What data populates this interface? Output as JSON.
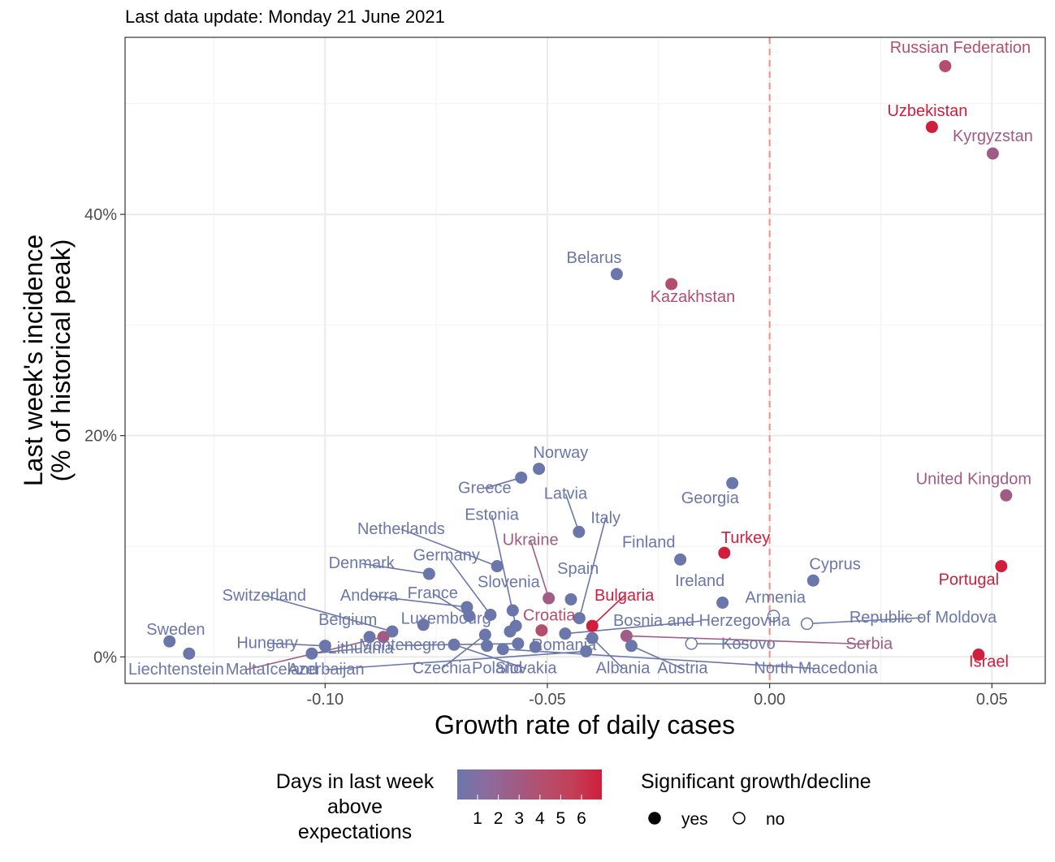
{
  "subtitle": "Last data update: Monday 21 June 2021",
  "chart_data": {
    "type": "scatter",
    "title": "",
    "subtitle": "Last data update: Monday 21 June 2021",
    "xlabel": "Growth rate of daily cases",
    "ylabel_lines": [
      "Last week's incidence",
      "(% of historical peak)"
    ],
    "xlim": [
      -0.145,
      0.062
    ],
    "ylim": [
      -0.024,
      0.56
    ],
    "x_ticks": [
      {
        "value": -0.1,
        "label": "-0.10"
      },
      {
        "value": -0.05,
        "label": "-0.05"
      },
      {
        "value": 0.0,
        "label": "0.00"
      },
      {
        "value": 0.05,
        "label": "0.05"
      }
    ],
    "y_ticks": [
      {
        "value": 0.0,
        "label": "0%"
      },
      {
        "value": 0.2,
        "label": "20%"
      },
      {
        "value": 0.4,
        "label": "40%"
      }
    ],
    "reference_line_x": 0.0,
    "reference_line_color": "#f0907e",
    "grid": true,
    "color_scale": [
      "#6b76aa",
      "#8b6c9f",
      "#a05c85",
      "#b54e6d",
      "#c23f57",
      "#d01e3d"
    ],
    "points": [
      {
        "name": "Russian Federation",
        "x": 0.0395,
        "y": 0.534,
        "days": 3,
        "sig": true
      },
      {
        "name": "Uzbekistan",
        "x": 0.0365,
        "y": 0.479,
        "days": 6,
        "sig": true
      },
      {
        "name": "Kyrgyzstan",
        "x": 0.0502,
        "y": 0.455,
        "days": 2,
        "sig": true
      },
      {
        "name": "Belarus",
        "x": -0.0344,
        "y": 0.346,
        "days": 0,
        "sig": true
      },
      {
        "name": "Kazakhstan",
        "x": -0.0221,
        "y": 0.337,
        "days": 3,
        "sig": true
      },
      {
        "name": "Norway",
        "x": -0.0519,
        "y": 0.17,
        "days": 0,
        "sig": true
      },
      {
        "name": "Greece",
        "x": -0.0559,
        "y": 0.162,
        "days": 0,
        "sig": true
      },
      {
        "name": "Georgia",
        "x": -0.0084,
        "y": 0.157,
        "days": 0,
        "sig": true
      },
      {
        "name": "United Kingdom",
        "x": 0.0532,
        "y": 0.146,
        "days": 2,
        "sig": true
      },
      {
        "name": "Latvia",
        "x": -0.0429,
        "y": 0.113,
        "days": 0,
        "sig": true
      },
      {
        "name": "Turkey",
        "x": -0.0102,
        "y": 0.094,
        "days": 5,
        "sig": true
      },
      {
        "name": "Finland",
        "x": -0.0201,
        "y": 0.088,
        "days": 0,
        "sig": true
      },
      {
        "name": "Portugal",
        "x": 0.0521,
        "y": 0.082,
        "days": 5,
        "sig": true
      },
      {
        "name": "Netherlands",
        "x": -0.0613,
        "y": 0.082,
        "days": 0,
        "sig": true
      },
      {
        "name": "Denmark",
        "x": -0.0766,
        "y": 0.075,
        "days": 0,
        "sig": true
      },
      {
        "name": "Cyprus",
        "x": 0.0098,
        "y": 0.069,
        "days": 0,
        "sig": true
      },
      {
        "name": "Ukraine",
        "x": -0.0497,
        "y": 0.053,
        "days": 2,
        "sig": true
      },
      {
        "name": "Spain",
        "x": -0.0447,
        "y": 0.052,
        "days": 0,
        "sig": true
      },
      {
        "name": "Ireland",
        "x": -0.0106,
        "y": 0.049,
        "days": 0,
        "sig": true
      },
      {
        "name": "Andorra",
        "x": -0.0681,
        "y": 0.045,
        "days": 0,
        "sig": true
      },
      {
        "name": "Slovenia",
        "x": -0.0578,
        "y": 0.042,
        "days": 0,
        "sig": true
      },
      {
        "name": "Germany",
        "x": -0.0628,
        "y": 0.038,
        "days": 0,
        "sig": true
      },
      {
        "name": "Armenia",
        "x": 0.0009,
        "y": 0.037,
        "days": 0,
        "sig": false
      },
      {
        "name": "France",
        "x": -0.0676,
        "y": 0.037,
        "days": 0,
        "sig": true
      },
      {
        "name": "Italy",
        "x": -0.0428,
        "y": 0.035,
        "days": 0,
        "sig": true
      },
      {
        "name": "Republic of Moldova",
        "x": 0.0084,
        "y": 0.03,
        "days": 0,
        "sig": false
      },
      {
        "name": "Bulgaria",
        "x": -0.0399,
        "y": 0.028,
        "days": 5,
        "sig": true
      },
      {
        "name": "Luxembourg",
        "x": -0.0779,
        "y": 0.029,
        "days": 0,
        "sig": true
      },
      {
        "name": "Estonia",
        "x": -0.0571,
        "y": 0.028,
        "days": 0,
        "sig": true
      },
      {
        "name": "Croatia",
        "x": -0.0513,
        "y": 0.024,
        "days": 3,
        "sig": true
      },
      {
        "name": "Netherlands Hungary",
        "x": -0.0584,
        "y": 0.023,
        "days": 0,
        "sig": true
      },
      {
        "name": "Switzerland",
        "x": -0.0849,
        "y": 0.023,
        "days": 0,
        "sig": true
      },
      {
        "name": "Bosnia and Herzegovina",
        "x": -0.046,
        "y": 0.021,
        "days": 0,
        "sig": true
      },
      {
        "name": "Serbia",
        "x": -0.0322,
        "y": 0.019,
        "days": 2,
        "sig": true
      },
      {
        "name": "Czechia",
        "x": -0.064,
        "y": 0.02,
        "days": 0,
        "sig": true
      },
      {
        "name": "Belgium",
        "x": -0.09,
        "y": 0.018,
        "days": 0,
        "sig": true
      },
      {
        "name": "Malta",
        "x": -0.0869,
        "y": 0.018,
        "days": 2,
        "sig": true
      },
      {
        "name": "Albania",
        "x": -0.0399,
        "y": 0.017,
        "days": 0,
        "sig": true
      },
      {
        "name": "Sweden",
        "x": -0.135,
        "y": 0.014,
        "days": 0,
        "sig": true
      },
      {
        "name": "Kosovo",
        "x": -0.0176,
        "y": 0.012,
        "days": 0,
        "sig": false
      },
      {
        "name": "Montenegro",
        "x": -0.0566,
        "y": 0.012,
        "days": 0,
        "sig": true
      },
      {
        "name": "Austria",
        "x": -0.0311,
        "y": 0.01,
        "days": 0,
        "sig": true
      },
      {
        "name": "Slovakia",
        "x": -0.071,
        "y": 0.011,
        "days": 0,
        "sig": true
      },
      {
        "name": "Hungary",
        "x": -0.1,
        "y": 0.01,
        "days": 0,
        "sig": true
      },
      {
        "name": "Poland",
        "x": -0.0636,
        "y": 0.01,
        "days": 0,
        "sig": true
      },
      {
        "name": "Romania",
        "x": -0.0527,
        "y": 0.009,
        "days": 0,
        "sig": true
      },
      {
        "name": "North Macedonia",
        "x": -0.06,
        "y": 0.007,
        "days": 0,
        "sig": true
      },
      {
        "name": "Azerbaijan",
        "x": -0.0413,
        "y": 0.005,
        "days": 0,
        "sig": true
      },
      {
        "name": "Lithuania",
        "x": -0.103,
        "y": 0.003,
        "days": 0,
        "sig": true
      },
      {
        "name": "Liechtenstein",
        "x": -0.1306,
        "y": 0.003,
        "days": 0,
        "sig": true
      },
      {
        "name": "Israel",
        "x": 0.047,
        "y": 0.002,
        "days": 5,
        "sig": true
      }
    ],
    "labels": [
      {
        "text": "Russian Federation",
        "x": 0.0429,
        "y": 0.546,
        "anchor": "middle",
        "days": 3
      },
      {
        "text": "Uzbekistan",
        "x": 0.0355,
        "y": 0.489,
        "anchor": "middle",
        "days": 6
      },
      {
        "text": "Kyrgyzstan",
        "x": 0.0502,
        "y": 0.466,
        "anchor": "middle",
        "days": 2
      },
      {
        "text": "Belarus",
        "x": -0.0395,
        "y": 0.356,
        "anchor": "middle",
        "days": 0
      },
      {
        "text": "Kazakhstan",
        "x": -0.0173,
        "y": 0.321,
        "anchor": "middle",
        "days": 3
      },
      {
        "text": "Norway",
        "x": -0.047,
        "y": 0.18,
        "anchor": "middle",
        "days": 0
      },
      {
        "text": "Greece",
        "x": -0.0641,
        "y": 0.148,
        "anchor": "middle",
        "days": 0
      },
      {
        "text": "Georgia",
        "x": -0.0134,
        "y": 0.139,
        "anchor": "middle",
        "days": 0
      },
      {
        "text": "United Kingdom",
        "x": 0.0459,
        "y": 0.156,
        "anchor": "middle",
        "days": 2
      },
      {
        "text": "Latvia",
        "x": -0.0459,
        "y": 0.143,
        "anchor": "middle",
        "days": 0
      },
      {
        "text": "Estonia",
        "x": -0.0625,
        "y": 0.124,
        "anchor": "middle",
        "days": 0
      },
      {
        "text": "Italy",
        "x": -0.0369,
        "y": 0.121,
        "anchor": "middle",
        "days": 0
      },
      {
        "text": "Netherlands",
        "x": -0.0829,
        "y": 0.111,
        "anchor": "middle",
        "days": 0
      },
      {
        "text": "Ukraine",
        "x": -0.0538,
        "y": 0.101,
        "anchor": "middle",
        "days": 2
      },
      {
        "text": "Finland",
        "x": -0.0272,
        "y": 0.099,
        "anchor": "middle",
        "days": 0
      },
      {
        "text": "Turkey",
        "x": -0.0054,
        "y": 0.103,
        "anchor": "middle",
        "days": 5
      },
      {
        "text": "Germany",
        "x": -0.0727,
        "y": 0.087,
        "anchor": "middle",
        "days": 0
      },
      {
        "text": "Denmark",
        "x": -0.0918,
        "y": 0.08,
        "anchor": "middle",
        "days": 0
      },
      {
        "text": "Spain",
        "x": -0.0431,
        "y": 0.075,
        "anchor": "middle",
        "days": 0
      },
      {
        "text": "Cyprus",
        "x": 0.0147,
        "y": 0.079,
        "anchor": "middle",
        "days": 0
      },
      {
        "text": "Portugal",
        "x": 0.0448,
        "y": 0.065,
        "anchor": "middle",
        "days": 5
      },
      {
        "text": "Slovenia",
        "x": -0.0587,
        "y": 0.063,
        "anchor": "middle",
        "days": 0
      },
      {
        "text": "Ireland",
        "x": -0.0157,
        "y": 0.064,
        "anchor": "middle",
        "days": 0
      },
      {
        "text": "Switzerland",
        "x": -0.1137,
        "y": 0.051,
        "anchor": "middle",
        "days": 0
      },
      {
        "text": "Andorra",
        "x": -0.0901,
        "y": 0.051,
        "anchor": "middle",
        "days": 0
      },
      {
        "text": "France",
        "x": -0.0758,
        "y": 0.053,
        "anchor": "middle",
        "days": 0
      },
      {
        "text": "Bulgaria",
        "x": -0.0327,
        "y": 0.051,
        "anchor": "middle",
        "days": 5
      },
      {
        "text": "Armenia",
        "x": 0.0013,
        "y": 0.049,
        "anchor": "middle",
        "days": 0
      },
      {
        "text": "Croatia",
        "x": -0.0496,
        "y": 0.033,
        "anchor": "middle",
        "days": 3
      },
      {
        "text": "Belgium",
        "x": -0.0949,
        "y": 0.029,
        "anchor": "middle",
        "days": 0
      },
      {
        "text": "Luxembourg",
        "x": -0.0728,
        "y": 0.03,
        "anchor": "middle",
        "days": 0
      },
      {
        "text": "Bosnia and Herzegovina",
        "x": -0.0153,
        "y": 0.028,
        "anchor": "middle",
        "days": 0
      },
      {
        "text": "Republic of Moldova",
        "x": 0.0345,
        "y": 0.031,
        "anchor": "middle",
        "days": 0
      },
      {
        "text": "Hungary",
        "x": -0.113,
        "y": 0.008,
        "anchor": "middle",
        "days": 0
      },
      {
        "text": "Montenegro",
        "x": -0.0826,
        "y": 0.006,
        "anchor": "middle",
        "days": 0
      },
      {
        "text": "Lithuania",
        "x": -0.092,
        "y": 0.003,
        "anchor": "middle",
        "days": 0
      },
      {
        "text": "Romania",
        "x": -0.0463,
        "y": 0.006,
        "anchor": "middle",
        "days": 0
      },
      {
        "text": "Kosovo",
        "x": -0.0048,
        "y": 0.007,
        "anchor": "middle",
        "days": 0
      },
      {
        "text": "Serbia",
        "x": 0.0224,
        "y": 0.007,
        "anchor": "middle",
        "days": 2
      },
      {
        "text": "Sweden",
        "x": -0.1336,
        "y": 0.02,
        "anchor": "middle",
        "days": 0
      },
      {
        "text": "Liechtenstein",
        "x": -0.1335,
        "y": -0.016,
        "anchor": "middle",
        "days": 0
      },
      {
        "text": "Malta",
        "x": -0.1179,
        "y": -0.016,
        "anchor": "middle",
        "days": 0
      },
      {
        "text": "Iceland",
        "x": -0.1075,
        "y": -0.016,
        "anchor": "middle",
        "days": 0
      },
      {
        "text": "Azerbaijan",
        "x": -0.0998,
        "y": -0.016,
        "anchor": "middle",
        "days": 0
      },
      {
        "text": "Czechia",
        "x": -0.0738,
        "y": -0.015,
        "anchor": "middle",
        "days": 0
      },
      {
        "text": "Poland",
        "x": -0.0613,
        "y": -0.015,
        "anchor": "middle",
        "days": 0
      },
      {
        "text": "Slovakia",
        "x": -0.0548,
        "y": -0.015,
        "anchor": "middle",
        "days": 0
      },
      {
        "text": "Albania",
        "x": -0.033,
        "y": -0.015,
        "anchor": "middle",
        "days": 0
      },
      {
        "text": "Austria",
        "x": -0.0196,
        "y": -0.015,
        "anchor": "middle",
        "days": 0
      },
      {
        "text": "North Macedonia",
        "x": 0.0104,
        "y": -0.015,
        "anchor": "middle",
        "days": 0
      },
      {
        "text": "Israel",
        "x": 0.0493,
        "y": -0.009,
        "anchor": "middle",
        "days": 5
      }
    ],
    "legend": {
      "color_title_lines": [
        "Days in last week",
        "above",
        "expectations"
      ],
      "color_ticks": [
        "1",
        "2",
        "3",
        "4",
        "5",
        "6"
      ],
      "shape_title": "Significant growth/decline",
      "shape_items": [
        {
          "label": "yes",
          "filled": true
        },
        {
          "label": "no",
          "filled": false
        }
      ]
    }
  }
}
